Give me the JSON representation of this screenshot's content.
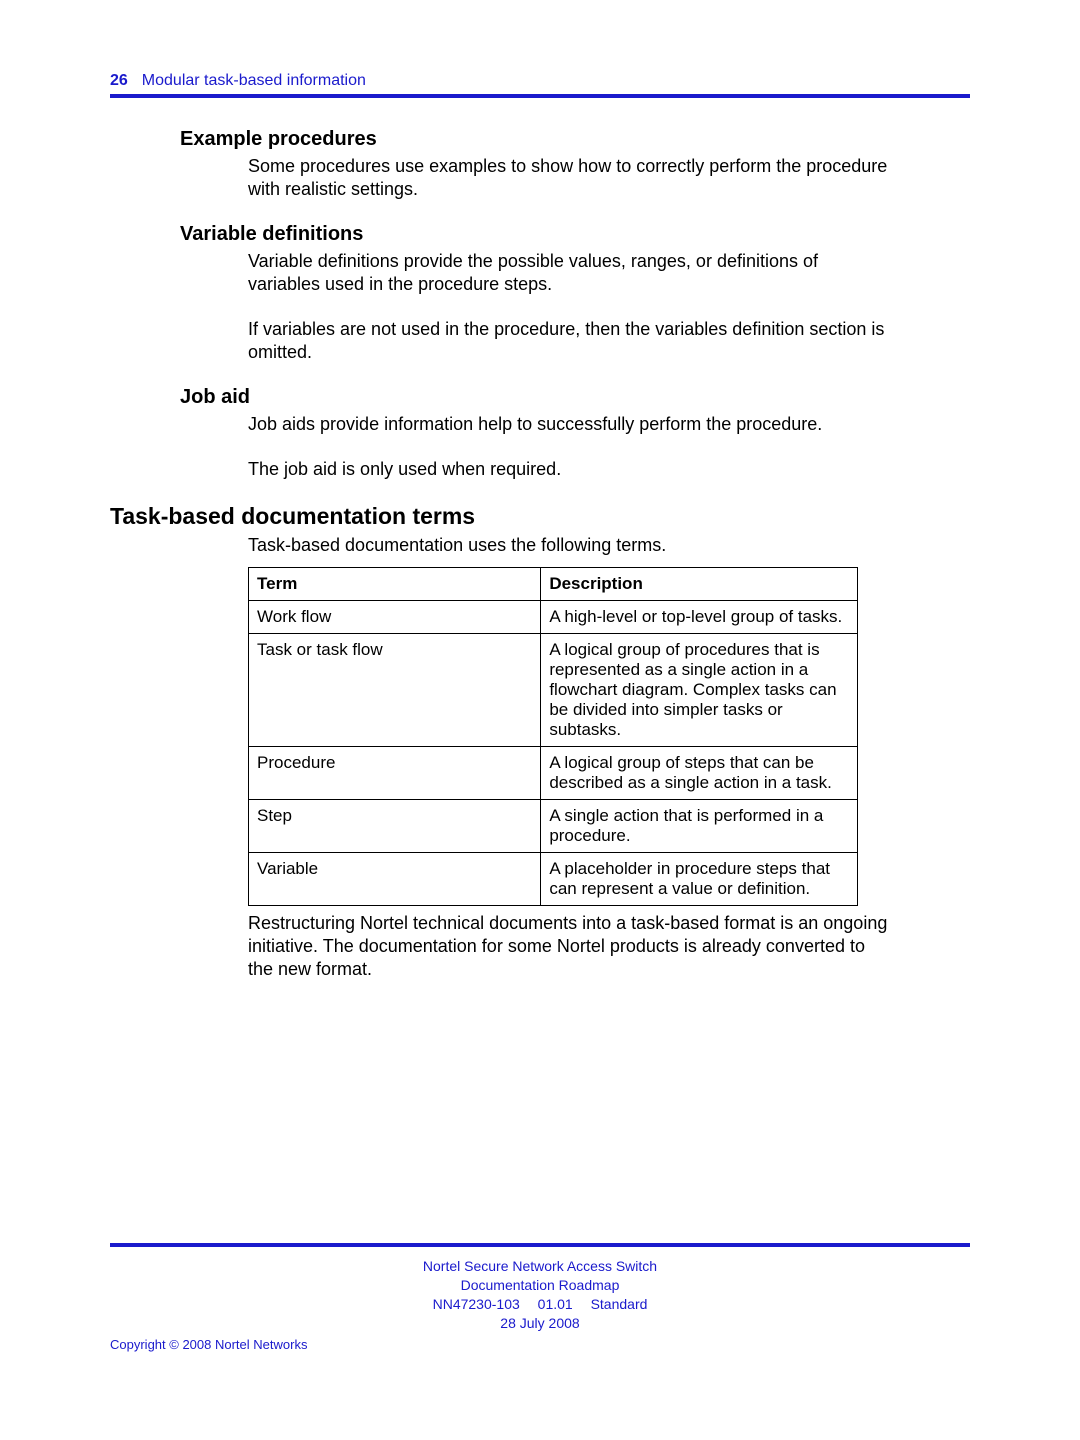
{
  "header": {
    "page_number": "26",
    "chapter": "Modular task-based information"
  },
  "sections": {
    "example": {
      "heading": "Example procedures",
      "p1": "Some procedures use examples to show how to correctly perform the procedure with realistic settings."
    },
    "vardef": {
      "heading": "Variable definitions",
      "p1": "Variable definitions provide the possible values, ranges, or definitions of variables used in the procedure steps.",
      "p2": "If variables are not used in the procedure, then the variables definition section is omitted."
    },
    "jobaid": {
      "heading": "Job aid",
      "p1": "Job aids provide information help to successfully perform the procedure.",
      "p2": "The job aid is only used when required."
    },
    "terms": {
      "heading": "Task-based documentation terms",
      "intro": "Task-based documentation uses the following terms.",
      "table": {
        "col1": "Term",
        "col2": "Description",
        "rows": [
          {
            "term": "Work flow",
            "desc": "A high-level or top-level group of tasks."
          },
          {
            "term": "Task or task flow",
            "desc": "A logical group of procedures that is represented as a single action in a flowchart diagram. Complex tasks can be divided into simpler tasks or subtasks."
          },
          {
            "term": "Procedure",
            "desc": "A logical group of steps that can be described as a single action in a task."
          },
          {
            "term": "Step",
            "desc": "A single action that is performed in a procedure."
          },
          {
            "term": "Variable",
            "desc": "A placeholder in procedure steps that can represent a value or definition."
          }
        ]
      },
      "after": "Restructuring Nortel technical documents into a task-based format is an ongoing initiative. The documentation for some Nortel products is already converted to the new format."
    }
  },
  "footer": {
    "line1": "Nortel Secure Network Access Switch",
    "line2": "Documentation Roadmap",
    "line3": "NN47230-103  01.01  Standard",
    "line4": "28 July 2008",
    "copyright": "Copyright © 2008 Nortel Networks"
  },
  "colors": {
    "accent": "#1a1acc",
    "text": "#000000",
    "background": "#ffffff"
  }
}
